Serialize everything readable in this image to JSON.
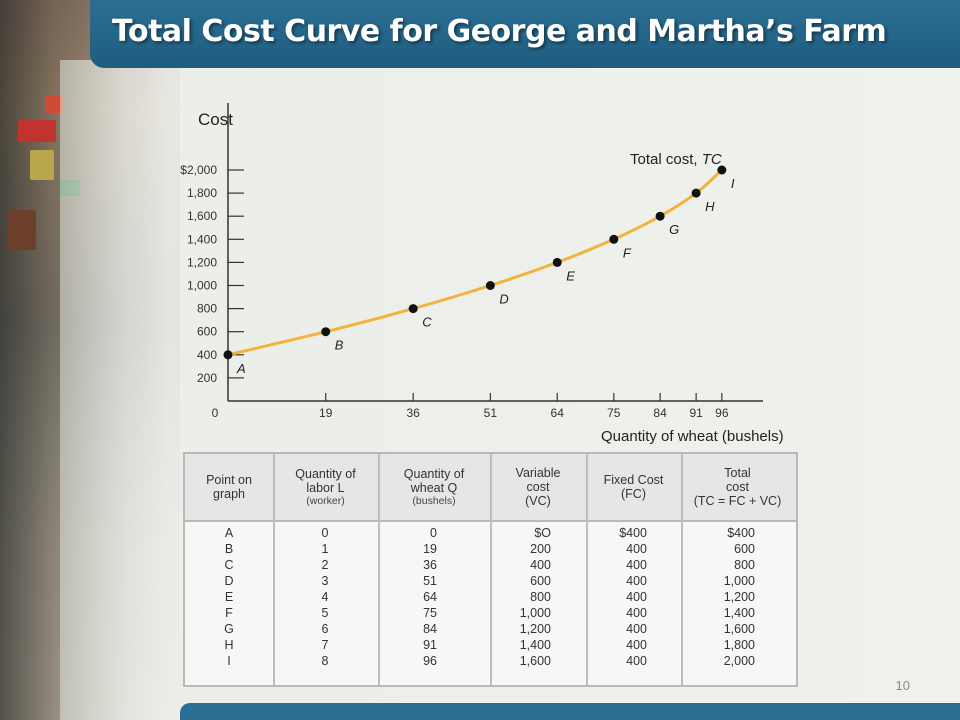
{
  "slide": {
    "title": "Total Cost Curve for George and Martha’s Farm",
    "page_number": "10",
    "accent_color": "#1f5d80",
    "curve_color": "#f2b33d"
  },
  "chart_data": {
    "type": "line",
    "ylabel": "Cost",
    "xlabel_main": "Quantity of wheat",
    "xlabel_unit": "(bushels)",
    "series_label_prefix": "Total cost, ",
    "series_label_symbol": "TC",
    "y_ticks": [
      "$2,000",
      "1,800",
      "1,600",
      "1,400",
      "1,200",
      "1,000",
      "800",
      "600",
      "400",
      "200"
    ],
    "y_tick_values": [
      2000,
      1800,
      1600,
      1400,
      1200,
      1000,
      800,
      600,
      400,
      200
    ],
    "x_origin_label": "0",
    "x_ticks": [
      "19",
      "36",
      "51",
      "64",
      "75",
      "84",
      "91",
      "96"
    ],
    "x_tick_values": [
      19,
      36,
      51,
      64,
      75,
      84,
      91,
      96
    ],
    "xlim": [
      0,
      104
    ],
    "ylim": [
      0,
      2000
    ],
    "points": [
      {
        "label": "A",
        "x": 0,
        "y": 400
      },
      {
        "label": "B",
        "x": 19,
        "y": 600
      },
      {
        "label": "C",
        "x": 36,
        "y": 800
      },
      {
        "label": "D",
        "x": 51,
        "y": 1000
      },
      {
        "label": "E",
        "x": 64,
        "y": 1200
      },
      {
        "label": "F",
        "x": 75,
        "y": 1400
      },
      {
        "label": "G",
        "x": 84,
        "y": 1600
      },
      {
        "label": "H",
        "x": 91,
        "y": 1800
      },
      {
        "label": "I",
        "x": 96,
        "y": 2000
      }
    ]
  },
  "table": {
    "headers": {
      "point": {
        "line1": "Point on",
        "line2": "graph"
      },
      "labor": {
        "line1": "Quantity of",
        "line2": "labor L",
        "sub": "(worker)"
      },
      "wheat": {
        "line1": "Quantity of",
        "line2": "wheat Q",
        "sub": "(bushels)"
      },
      "vc": {
        "line1": "Variable",
        "line2": "cost",
        "line3": "(VC)"
      },
      "fc": {
        "line1": "Fixed Cost",
        "line2": "(FC)"
      },
      "tc": {
        "line1": "Total",
        "line2": "cost",
        "line3": "(TC = FC + VC)"
      }
    },
    "rows": [
      {
        "point": "A",
        "labor": "0",
        "wheat": "0",
        "vc": "$O",
        "fc": "$400",
        "tc": "$400"
      },
      {
        "point": "B",
        "labor": "1",
        "wheat": "19",
        "vc": "200",
        "fc": "400",
        "tc": "600"
      },
      {
        "point": "C",
        "labor": "2",
        "wheat": "36",
        "vc": "400",
        "fc": "400",
        "tc": "800"
      },
      {
        "point": "D",
        "labor": "3",
        "wheat": "51",
        "vc": "600",
        "fc": "400",
        "tc": "1,000"
      },
      {
        "point": "E",
        "labor": "4",
        "wheat": "64",
        "vc": "800",
        "fc": "400",
        "tc": "1,200"
      },
      {
        "point": "F",
        "labor": "5",
        "wheat": "75",
        "vc": "1,000",
        "fc": "400",
        "tc": "1,400"
      },
      {
        "point": "G",
        "labor": "6",
        "wheat": "84",
        "vc": "1,200",
        "fc": "400",
        "tc": "1,600"
      },
      {
        "point": "H",
        "labor": "7",
        "wheat": "91",
        "vc": "1,400",
        "fc": "400",
        "tc": "1,800"
      },
      {
        "point": "I",
        "labor": "8",
        "wheat": "96",
        "vc": "1,600",
        "fc": "400",
        "tc": "2,000"
      }
    ]
  }
}
